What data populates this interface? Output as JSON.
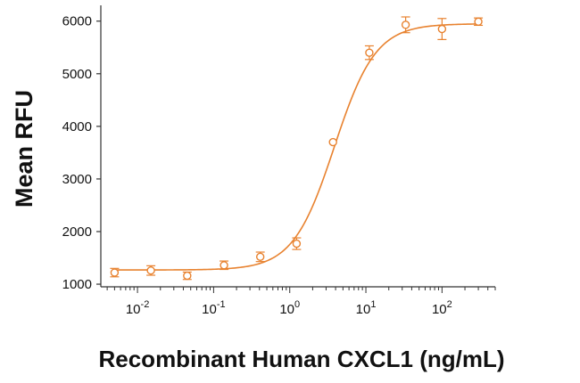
{
  "chart_data": {
    "type": "scatter",
    "xlabel": "Recombinant Human CXCL1 (ng/mL)",
    "ylabel": "Mean RFU",
    "x_scale": "log",
    "xlim": [
      0.0033,
      500
    ],
    "ylim": [
      950,
      6300
    ],
    "y_ticks": [
      1000,
      2000,
      3000,
      4000,
      5000,
      6000
    ],
    "x_ticks": [
      {
        "value": 0.01,
        "base": "10",
        "exp": "-2"
      },
      {
        "value": 0.1,
        "base": "10",
        "exp": "-1"
      },
      {
        "value": 1,
        "base": "10",
        "exp": "0"
      },
      {
        "value": 10,
        "base": "10",
        "exp": "1"
      },
      {
        "value": 100,
        "base": "10",
        "exp": "2"
      }
    ],
    "grid": false,
    "color": "#e8822f",
    "series": [
      {
        "points": [
          {
            "x": 0.005,
            "y": 1220,
            "err": 80
          },
          {
            "x": 0.015,
            "y": 1260,
            "err": 90
          },
          {
            "x": 0.045,
            "y": 1160,
            "err": 70
          },
          {
            "x": 0.137,
            "y": 1360,
            "err": 80
          },
          {
            "x": 0.41,
            "y": 1520,
            "err": 90
          },
          {
            "x": 1.23,
            "y": 1770,
            "err": 110
          },
          {
            "x": 3.7,
            "y": 3700,
            "err": 0
          },
          {
            "x": 11.1,
            "y": 5400,
            "err": 130
          },
          {
            "x": 33.3,
            "y": 5930,
            "err": 150
          },
          {
            "x": 100,
            "y": 5850,
            "err": 200
          },
          {
            "x": 300,
            "y": 5990,
            "err": 70
          }
        ],
        "fit": {
          "bottom": 1270,
          "top": 5950,
          "ec50": 3.85,
          "hill": 1.6
        }
      }
    ]
  }
}
